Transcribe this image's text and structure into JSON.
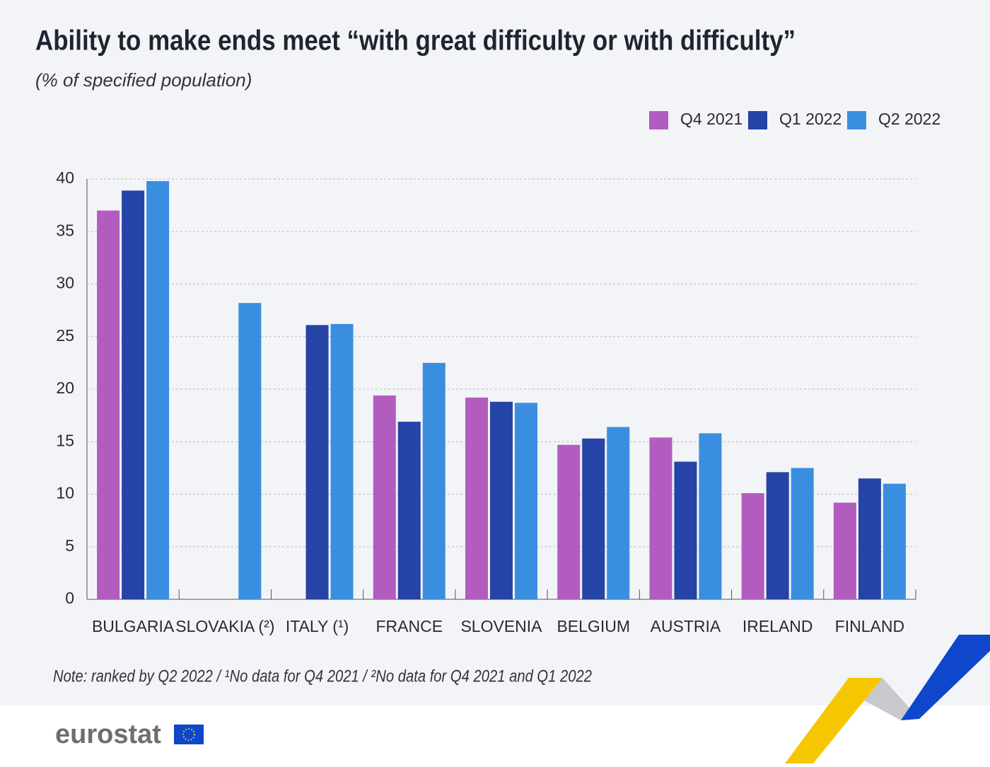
{
  "chart_data": {
    "type": "bar",
    "title": "Ability to make ends meet “with great difficulty or with difficulty”",
    "subtitle": "(% of specified population)",
    "note": "Note: ranked by Q2 2022 / ¹No data for Q4 2021 / ²No data for Q4 2021 and Q1 2022",
    "logo": "eurostat",
    "categories": [
      "BULGARIA",
      "SLOVAKIA (²)",
      "ITALY (¹)",
      "FRANCE",
      "SLOVENIA",
      "BELGIUM",
      "AUSTRIA",
      "IRELAND",
      "FINLAND"
    ],
    "series": [
      {
        "name": "Q4 2021",
        "color": "#b35cbf",
        "values": [
          37.0,
          null,
          null,
          19.4,
          19.2,
          14.7,
          15.4,
          10.1,
          9.2
        ]
      },
      {
        "name": "Q1 2022",
        "color": "#2643a6",
        "values": [
          38.9,
          null,
          26.1,
          16.9,
          18.8,
          15.3,
          13.1,
          12.1,
          11.5
        ]
      },
      {
        "name": "Q2 2022",
        "color": "#3a8ee0",
        "values": [
          39.8,
          28.2,
          26.2,
          22.5,
          18.7,
          16.4,
          15.8,
          12.5,
          11.0
        ]
      }
    ],
    "ylim": [
      0,
      40
    ],
    "yticks": [
      0,
      5,
      10,
      15,
      20,
      25,
      30,
      35,
      40
    ],
    "grid": true,
    "legend": "top-right"
  }
}
